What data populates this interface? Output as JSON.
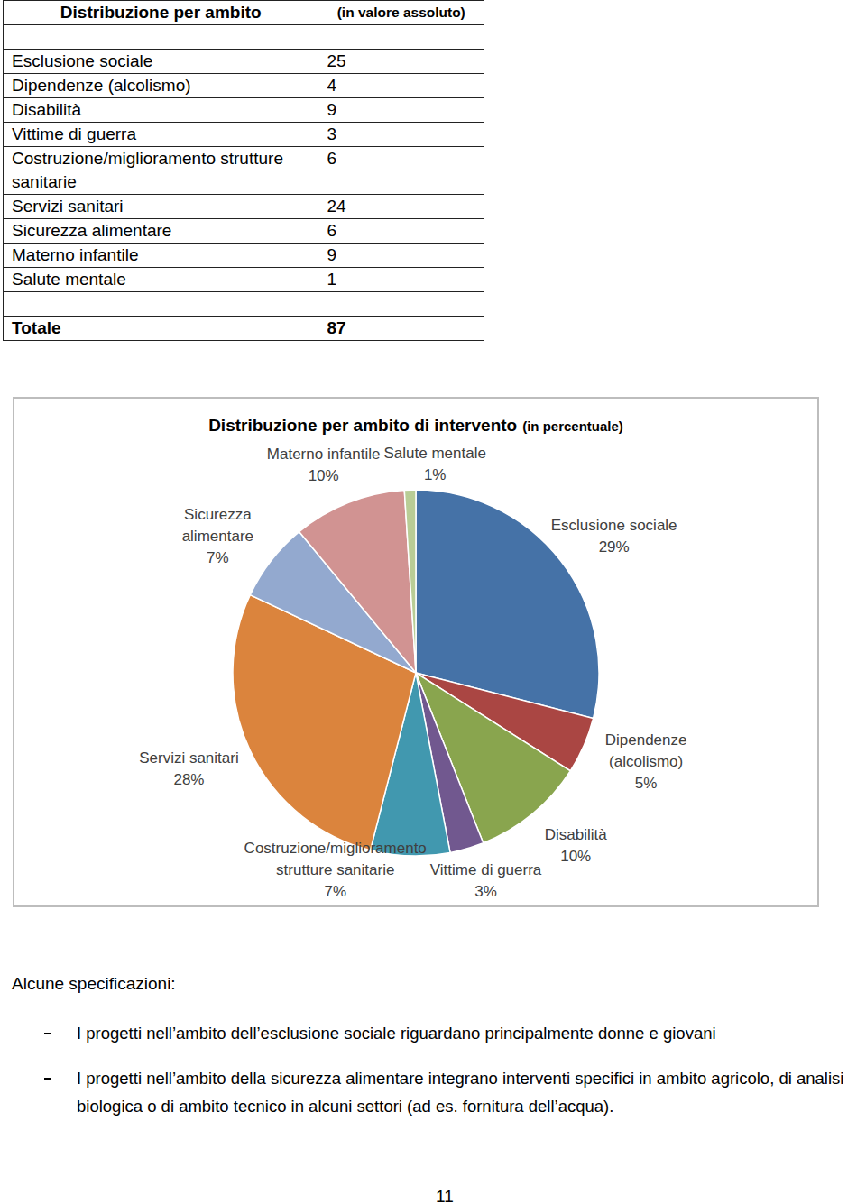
{
  "table": {
    "title": "Distribuzione per ambito",
    "subtitle": "(in valore assoluto)",
    "rows": [
      [
        "Esclusione sociale",
        25
      ],
      [
        "Dipendenze (alcolismo)",
        4
      ],
      [
        "Disabilità",
        9
      ],
      [
        "Vittime di guerra",
        3
      ],
      [
        "Costruzione/miglioramento strutture sanitarie",
        6
      ],
      [
        "Servizi sanitari",
        24
      ],
      [
        "Sicurezza alimentare",
        6
      ],
      [
        "Materno infantile",
        9
      ],
      [
        "Salute mentale",
        1
      ]
    ],
    "total": {
      "label": "Totale",
      "value": 87
    }
  },
  "chart_data": {
    "type": "pie",
    "title": "Distribuzione per ambito di intervento",
    "subtitle": "(in percentuale)",
    "categories": [
      "Esclusione sociale",
      "Dipendenze (alcolismo)",
      "Disabilità",
      "Vittime di guerra",
      "Costruzione/miglioramento strutture sanitarie",
      "Servizi sanitari",
      "Sicurezza alimentare",
      "Materno infantile",
      "Salute mentale"
    ],
    "values": [
      29,
      5,
      10,
      3,
      7,
      28,
      7,
      10,
      1
    ],
    "value_labels": [
      "29%",
      "5%",
      "10%",
      "3%",
      "7%",
      "28%",
      "7%",
      "10%",
      "1%"
    ],
    "colors": [
      "#4572a7",
      "#aa4643",
      "#89a54e",
      "#71588f",
      "#4198af",
      "#db843d",
      "#93a9cf",
      "#d19392",
      "#b9cd96"
    ],
    "data_labels": true
  },
  "notes": {
    "heading": "Alcune specificazioni:",
    "items": [
      "I progetti nell’ambito dell’esclusione sociale riguardano principalmente donne e giovani",
      "I progetti nell’ambito della sicurezza alimentare integrano interventi specifici in ambito agricolo, di analisi biologica o di ambito tecnico in alcuni settori (ad es. fornitura dell’acqua)."
    ]
  },
  "page_number": "11"
}
